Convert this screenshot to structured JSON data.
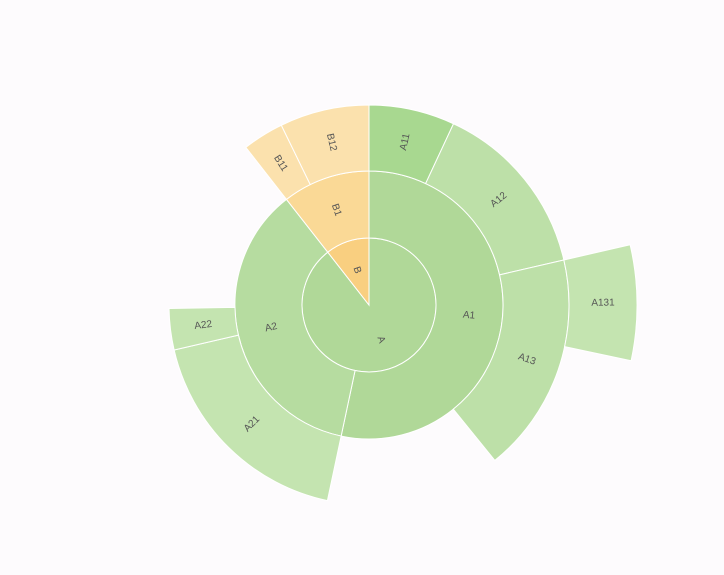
{
  "chart_data": {
    "type": "sunburst",
    "nodes": [
      {
        "name": "A",
        "value": 322,
        "color": "#b0d898",
        "children": [
          {
            "name": "A1",
            "value": 192,
            "color": "#b0d898",
            "children": [
              {
                "name": "A11",
                "value": 25,
                "color": "#a8d890"
              },
              {
                "name": "A12",
                "value": 52,
                "color": "#bde0a8"
              },
              {
                "name": "A13",
                "value": 64,
                "color": "#bde0a8",
                "children": [
                  {
                    "name": "A131",
                    "value": 25,
                    "color": "#c4e4b0"
                  }
                ]
              }
            ]
          },
          {
            "name": "A2",
            "value": 130,
            "color": "#b6dca0",
            "children": [
              {
                "name": "A21",
                "value": 65,
                "color": "#c4e4b0"
              },
              {
                "name": "A22",
                "value": 12,
                "color": "#c4e4b0"
              }
            ]
          }
        ]
      },
      {
        "name": "B",
        "value": 38,
        "color": "#f9cf80",
        "children": [
          {
            "name": "B1",
            "value": 38,
            "color": "#fad996",
            "children": [
              {
                "name": "B11",
                "value": 12,
                "color": "#fbe1ad"
              },
              {
                "name": "B12",
                "value": 26,
                "color": "#fbe1ad"
              }
            ]
          }
        ]
      }
    ]
  }
}
